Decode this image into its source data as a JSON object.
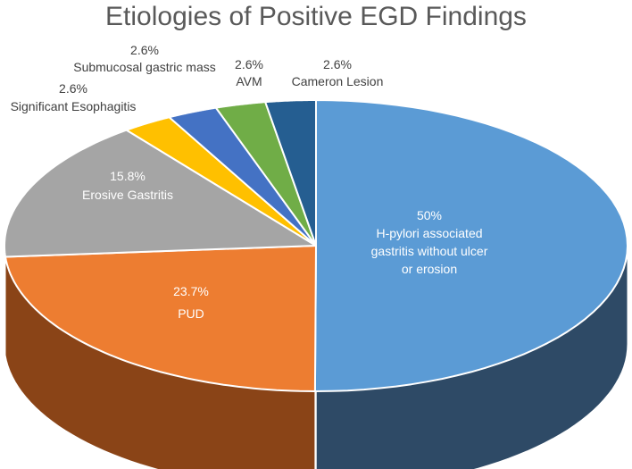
{
  "chart_data": {
    "type": "pie",
    "title": "Etiologies of Positive EGD Findings",
    "slices": [
      {
        "name": "H-pylori associated gastritis without ulcer or erosion",
        "value": 50,
        "label_lines": [
          "50%",
          "H-pylori associated",
          "gastritis without ulcer",
          "or erosion"
        ],
        "color": "#5B9BD5",
        "side": "#2E4A66"
      },
      {
        "name": "PUD",
        "value": 23.7,
        "label_lines": [
          "23.7%",
          "PUD"
        ],
        "color": "#ED7D31",
        "side": "#8A4417"
      },
      {
        "name": "Erosive Gastritis",
        "value": 15.8,
        "label_lines": [
          "15.8%",
          "Erosive Gastritis"
        ],
        "color": "#A5A5A5",
        "side": "#6B6B6B"
      },
      {
        "name": "Significant Esophagitis",
        "value": 2.6,
        "label_lines": [
          "2.6%",
          "Significant Esophagitis"
        ],
        "color": "#FFC000",
        "side": "#9E7600"
      },
      {
        "name": "Submucosal gastric mass",
        "value": 2.6,
        "label_lines": [
          "2.6%",
          "Submucosal gastric mass"
        ],
        "color": "#4472C4",
        "side": "#26437A"
      },
      {
        "name": "AVM",
        "value": 2.6,
        "label_lines": [
          "2.6%",
          "AVM"
        ],
        "color": "#70AD47",
        "side": "#416B27"
      },
      {
        "name": "Cameron Lesion",
        "value": 2.6,
        "label_lines": [
          "2.6%",
          "Cameron Lesion"
        ],
        "color": "#255E91",
        "side": "#163A5A"
      }
    ],
    "legend": "none",
    "start_angle": "12 o'clock, clockwise",
    "style": "3d"
  }
}
